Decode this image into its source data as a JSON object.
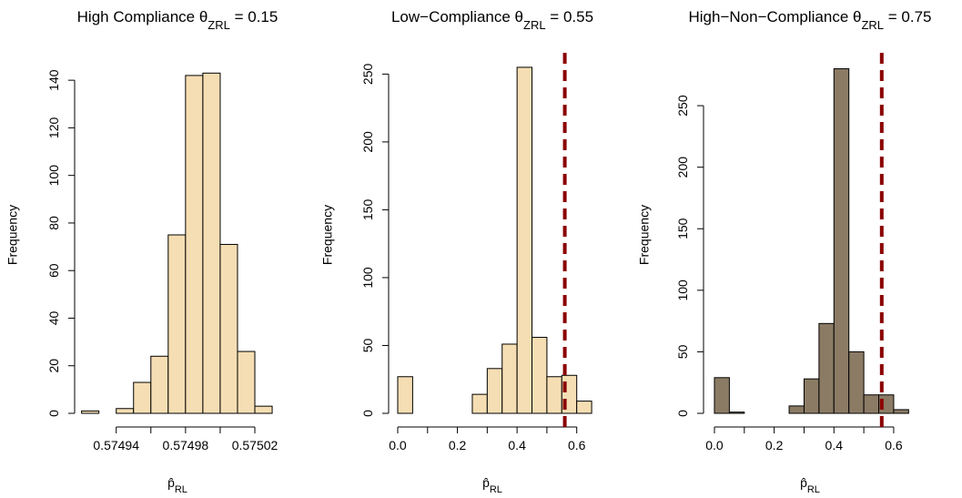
{
  "chart_data": [
    {
      "type": "histogram",
      "title": {
        "main": "High Compliance θ",
        "subscript": "ZRL",
        "rest": " = 0.15"
      },
      "xlabel": {
        "main": "p̂",
        "subscript": "RL"
      },
      "ylabel": "Frequency",
      "bins": [
        0.57492,
        0.57493,
        0.57494,
        0.57495,
        0.57496,
        0.57497,
        0.57498,
        0.57499,
        0.575,
        0.57501,
        0.57502,
        0.57503
      ],
      "counts": [
        1,
        0,
        2,
        13,
        24,
        75,
        142,
        143,
        71,
        26,
        3
      ],
      "color": "#f5deb3",
      "xlim": [
        0.574916,
        0.575041
      ],
      "ylim": [
        0,
        150
      ],
      "xticks": [
        0.57494,
        0.57498,
        0.57502
      ],
      "xticks_minor": [
        0.57496,
        0.575
      ],
      "yticks": [
        0,
        20,
        40,
        60,
        80,
        100,
        120,
        140
      ]
    },
    {
      "type": "histogram",
      "title": {
        "main": "Low−Compliance θ",
        "subscript": "ZRL",
        "rest": " = 0.55"
      },
      "xlabel": {
        "main": "p̂",
        "subscript": "RL"
      },
      "ylabel": "Frequency",
      "bins": [
        0,
        0.05,
        0.1,
        0.15,
        0.2,
        0.25,
        0.3,
        0.35,
        0.4,
        0.45,
        0.5,
        0.55,
        0.6,
        0.65
      ],
      "counts": [
        27,
        0,
        0,
        0,
        0,
        14,
        33,
        51,
        255,
        56,
        27,
        28,
        9
      ],
      "color": "#f5deb3",
      "vline": 0.56,
      "vline_color": "#8b0000",
      "xlim": [
        -0.0305,
        0.665
      ],
      "ylim": [
        0,
        263
      ],
      "xticks": [
        {
          "value": 0,
          "label": "0.0"
        },
        0.2,
        0.4,
        0.6
      ],
      "xticks_minor": [
        0.1,
        0.3,
        0.5
      ],
      "yticks": [
        0,
        50,
        100,
        150,
        200,
        250
      ]
    },
    {
      "type": "histogram",
      "title": {
        "main": "High−Non−Compliance θ",
        "subscript": "ZRL",
        "rest": " = 0.75"
      },
      "xlabel": {
        "main": "p̂",
        "subscript": "RL"
      },
      "ylabel": "Frequency",
      "bins": [
        0,
        0.05,
        0.1,
        0.15,
        0.2,
        0.25,
        0.3,
        0.35,
        0.4,
        0.45,
        0.5,
        0.55,
        0.6,
        0.65
      ],
      "counts": [
        29,
        1,
        0,
        0,
        0,
        6,
        28,
        73,
        280,
        50,
        15,
        15,
        3
      ],
      "color": "#8b7b65",
      "vline": 0.56,
      "vline_color": "#8b0000",
      "xlim": [
        -0.0365,
        0.655
      ],
      "ylim": [
        0,
        290
      ],
      "xticks": [
        {
          "value": 0,
          "label": "0.0"
        },
        0.2,
        0.4,
        0.6
      ],
      "xticks_minor": [
        0.1,
        0.3,
        0.5
      ],
      "yticks": [
        0,
        50,
        100,
        150,
        200,
        250
      ]
    }
  ]
}
